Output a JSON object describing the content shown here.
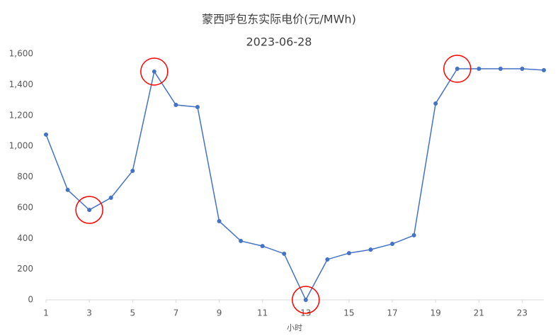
{
  "chart_data": {
    "type": "line",
    "title": "蒙西呼包东实际电价(元/MWh)",
    "subtitle": "2023-06-28",
    "x_label": "小时",
    "x": [
      1,
      2,
      3,
      4,
      5,
      6,
      7,
      8,
      9,
      10,
      11,
      12,
      13,
      14,
      15,
      16,
      17,
      18,
      19,
      20,
      21,
      22,
      23,
      24
    ],
    "series": [
      {
        "name": "实际电价",
        "color": "#4472c4",
        "values": [
          1075,
          715,
          585,
          664,
          839,
          1485,
          1268,
          1254,
          512,
          383,
          350,
          300,
          0,
          263,
          304,
          327,
          364,
          420,
          1277,
          1503,
          1503,
          1503,
          1503,
          1494
        ]
      }
    ],
    "xlim": [
      1,
      24
    ],
    "xticks": [
      1,
      3,
      5,
      7,
      9,
      11,
      13,
      15,
      17,
      19,
      21,
      23
    ],
    "ylim": [
      0,
      1600
    ],
    "yticks": [
      0,
      200,
      400,
      600,
      800,
      {
        "value": 1000,
        "label": "1,000"
      },
      {
        "value": 1200,
        "label": "1,200"
      },
      {
        "value": 1400,
        "label": "1,400"
      },
      {
        "value": 1600,
        "label": "1,600"
      }
    ],
    "grid": false,
    "highlights": [
      3,
      6,
      13,
      20
    ],
    "highlight_color": "#ff0000"
  }
}
